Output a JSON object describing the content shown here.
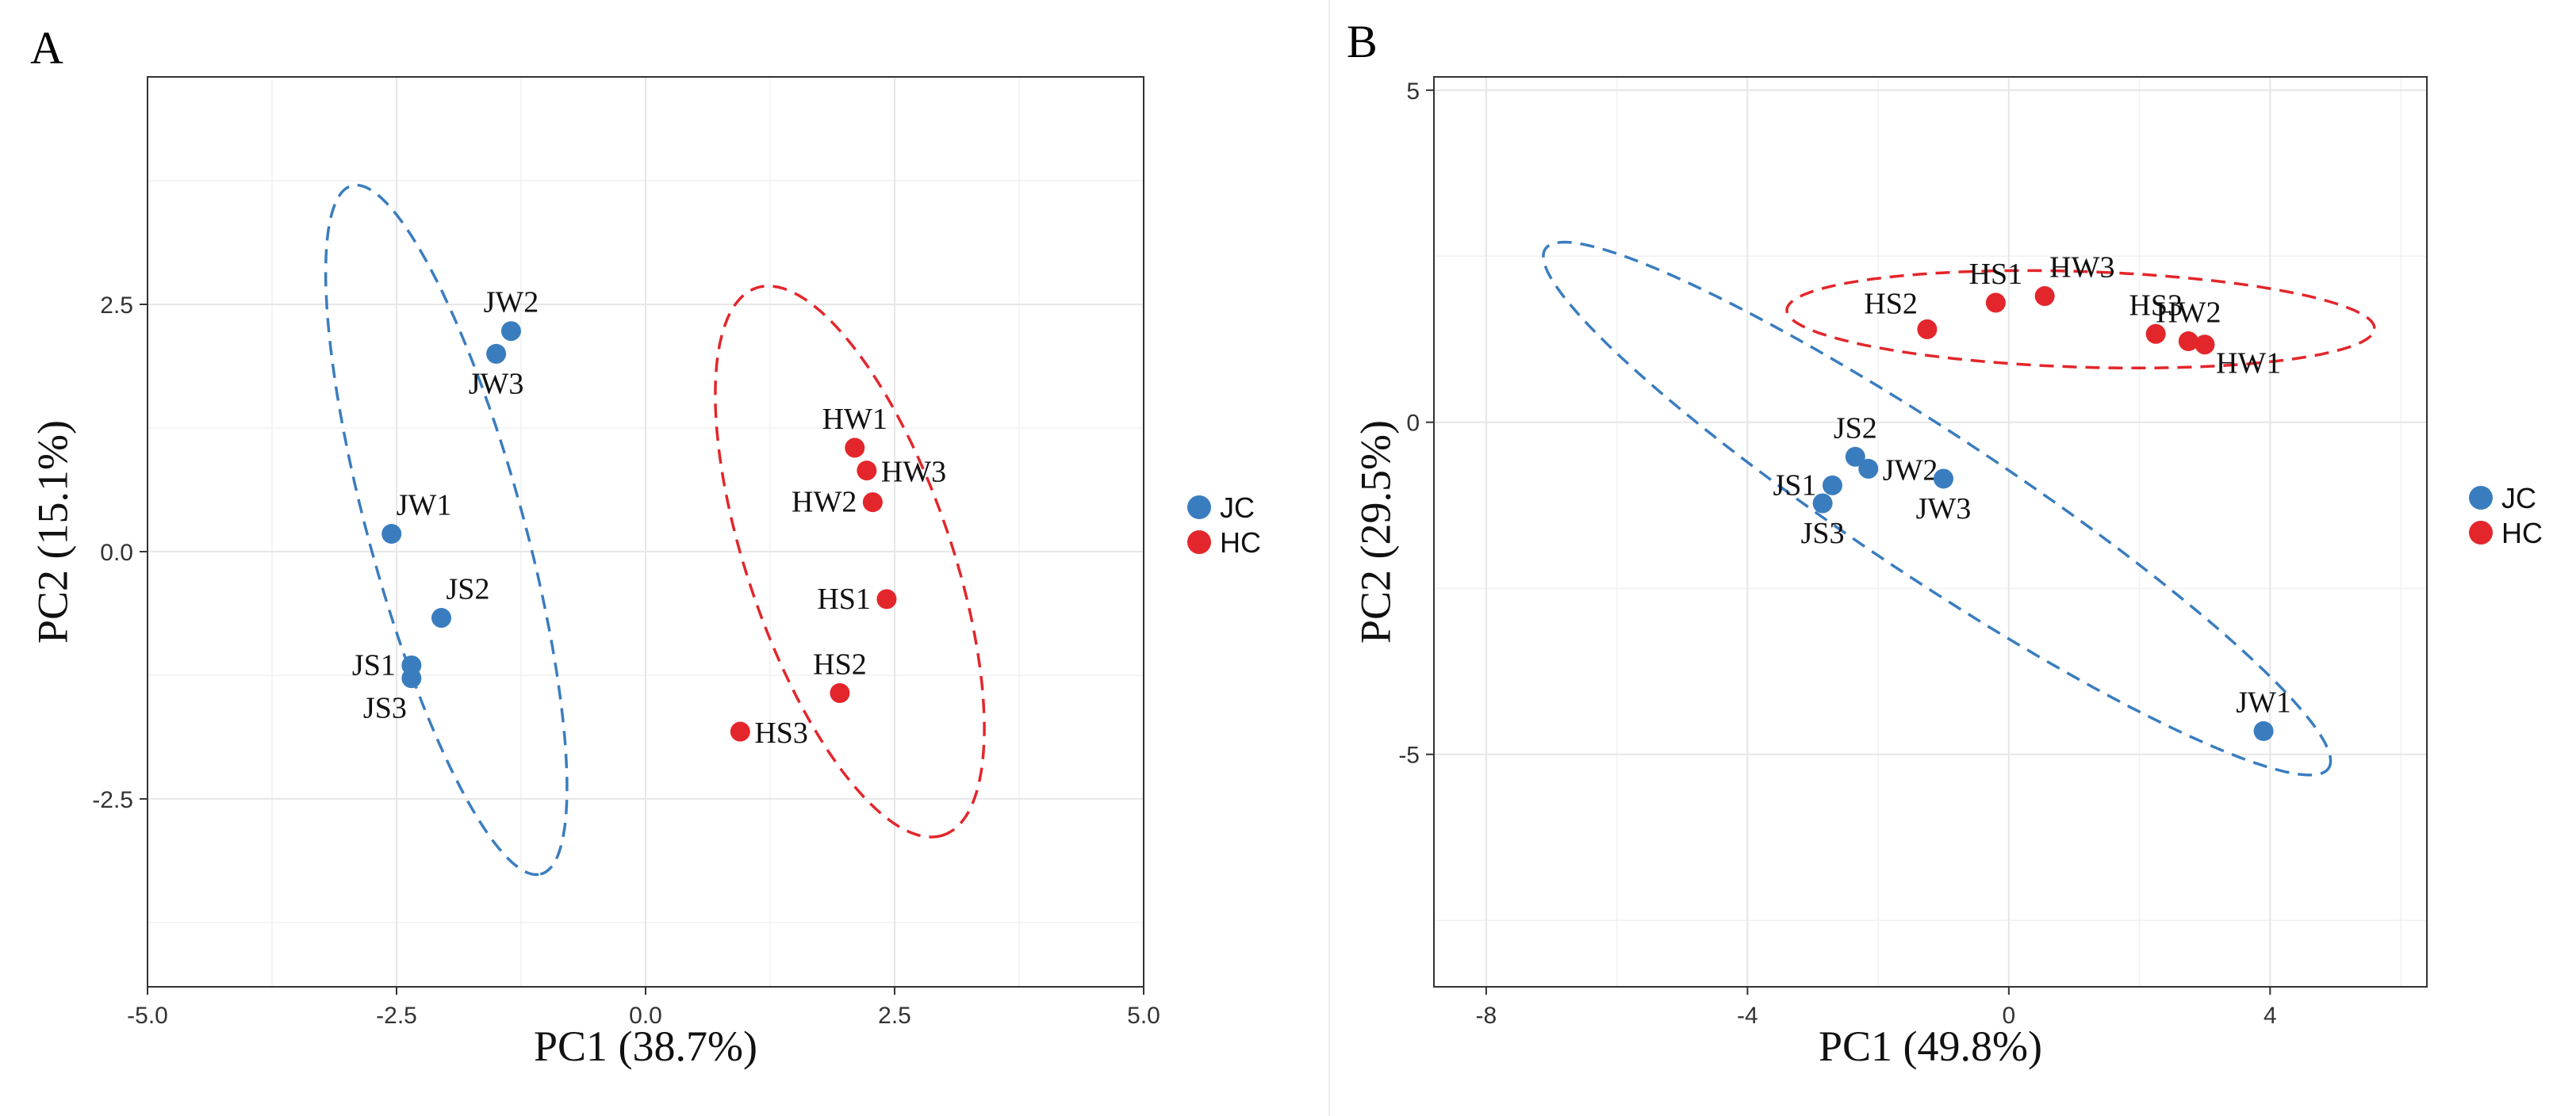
{
  "figure": {
    "divider": true
  },
  "chart_data": [
    {
      "panel_letter": "A",
      "type": "scatter",
      "xlabel": "PC1 (38.7%)",
      "ylabel": "PC2 (15.1%)",
      "xlim": [
        -5.0,
        5.0
      ],
      "ylim": [
        -4.4,
        4.8
      ],
      "xticks": [
        -5.0,
        -2.5,
        0.0,
        2.5,
        5.0
      ],
      "xtick_labels": [
        "-5.0",
        "-2.5",
        "0.0",
        "2.5",
        "5.0"
      ],
      "yticks": [
        -2.5,
        0.0,
        2.5
      ],
      "ytick_labels": [
        "-2.5",
        "0.0",
        "2.5"
      ],
      "grid": true,
      "legend_position": "right",
      "series": [
        {
          "name": "JC",
          "color": "#3a7dbf",
          "points": [
            {
              "label": "JW2",
              "x": -1.35,
              "y": 2.23,
              "label_pos": "above"
            },
            {
              "label": "JW3",
              "x": -1.5,
              "y": 2.0,
              "label_pos": "below"
            },
            {
              "label": "JW1",
              "x": -2.55,
              "y": 0.18,
              "label_pos": "above-right"
            },
            {
              "label": "JS2",
              "x": -2.05,
              "y": -0.67,
              "label_pos": "above-right"
            },
            {
              "label": "JS1",
              "x": -2.35,
              "y": -1.15,
              "label_pos": "left"
            },
            {
              "label": "JS3",
              "x": -2.35,
              "y": -1.28,
              "label_pos": "below-left"
            }
          ],
          "ellipse": {
            "cx": -2.0,
            "cy": 0.22,
            "rx": 3.9,
            "ry": 0.72,
            "angle_deg": -76
          }
        },
        {
          "name": "HC",
          "color": "#e3262b",
          "points": [
            {
              "label": "HW1",
              "x": 2.1,
              "y": 1.05,
              "label_pos": "above"
            },
            {
              "label": "HW3",
              "x": 2.22,
              "y": 0.82,
              "label_pos": "right"
            },
            {
              "label": "HW2",
              "x": 2.28,
              "y": 0.5,
              "label_pos": "left"
            },
            {
              "label": "HS1",
              "x": 2.42,
              "y": -0.48,
              "label_pos": "left"
            },
            {
              "label": "HS2",
              "x": 1.95,
              "y": -1.43,
              "label_pos": "above"
            },
            {
              "label": "HS3",
              "x": 0.95,
              "y": -1.82,
              "label_pos": "right"
            }
          ],
          "ellipse": {
            "cx": 2.05,
            "cy": -0.1,
            "rx": 3.15,
            "ry": 0.95,
            "angle_deg": -73
          }
        }
      ]
    },
    {
      "panel_letter": "B",
      "type": "scatter",
      "xlabel": "PC1 (49.8%)",
      "ylabel": "PC2 (29.5%)",
      "xlim": [
        -8.8,
        6.4
      ],
      "ylim": [
        -8.5,
        5.2
      ],
      "xticks": [
        -8,
        -4,
        0,
        4
      ],
      "xtick_labels": [
        "-8",
        "-4",
        "0",
        "4"
      ],
      "yticks": [
        -5,
        0,
        5
      ],
      "ytick_labels": [
        "-5",
        "0",
        "5"
      ],
      "grid": true,
      "legend_position": "right",
      "series": [
        {
          "name": "JC",
          "color": "#3a7dbf",
          "points": [
            {
              "label": "JS2",
              "x": -2.35,
              "y": -0.52,
              "label_pos": "above"
            },
            {
              "label": "JW2",
              "x": -2.15,
              "y": -0.7,
              "label_pos": "right"
            },
            {
              "label": "JS1",
              "x": -2.7,
              "y": -0.95,
              "label_pos": "left"
            },
            {
              "label": "JS3",
              "x": -2.85,
              "y": -1.22,
              "label_pos": "below"
            },
            {
              "label": "JW3",
              "x": -1.0,
              "y": -0.85,
              "label_pos": "below"
            },
            {
              "label": "JW1",
              "x": 3.9,
              "y": -4.65,
              "label_pos": "above"
            }
          ],
          "ellipse": {
            "cx": -1.1,
            "cy": -1.3,
            "rx": 7.4,
            "ry": 1.05,
            "angle_deg": -36
          }
        },
        {
          "name": "HC",
          "color": "#e3262b",
          "points": [
            {
              "label": "HS1",
              "x": -0.2,
              "y": 1.8,
              "label_pos": "above"
            },
            {
              "label": "HW3",
              "x": 0.55,
              "y": 1.9,
              "label_pos": "above-right"
            },
            {
              "label": "HS2",
              "x": -1.25,
              "y": 1.4,
              "label_pos": "above-left"
            },
            {
              "label": "HS3",
              "x": 2.25,
              "y": 1.33,
              "label_pos": "above"
            },
            {
              "label": "HW2",
              "x": 2.75,
              "y": 1.22,
              "label_pos": "above"
            },
            {
              "label": "HW1",
              "x": 3.0,
              "y": 1.17,
              "label_pos": "below-right"
            }
          ],
          "ellipse": {
            "cx": 1.1,
            "cy": 1.55,
            "rx": 4.5,
            "ry": 0.72,
            "angle_deg": -2
          }
        }
      ]
    }
  ]
}
